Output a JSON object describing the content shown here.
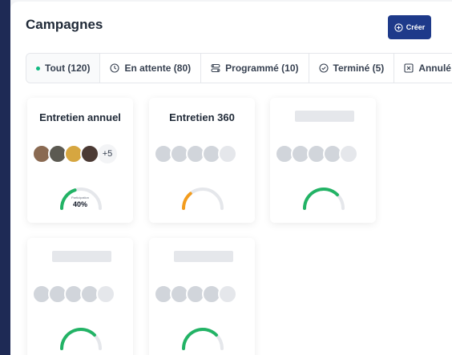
{
  "header": {
    "title": "Campagnes",
    "create_label": "Créer"
  },
  "tabs": [
    {
      "label": "Tout (120)",
      "icon": "green-dot-icon",
      "active": true
    },
    {
      "label": "En attente (80)",
      "icon": "clock-icon",
      "active": false
    },
    {
      "label": "Programmé (10)",
      "icon": "toggles-icon",
      "active": false
    },
    {
      "label": "Terminé (5)",
      "icon": "check-circle-icon",
      "active": false
    },
    {
      "label": "Annulé (",
      "icon": "x-square-icon",
      "active": false
    }
  ],
  "cards": [
    {
      "title": "Entretien annuel",
      "avatars": "photos",
      "more_label": "+5",
      "progress": 0.4,
      "gauge_caption": "Participation",
      "gauge_value": "40%",
      "gauge_color": "#22b365"
    },
    {
      "title": "Entretien 360",
      "avatars": "placeholders",
      "progress": 0.28,
      "gauge_color": "#f39c1d"
    },
    {
      "title": "",
      "avatars": "placeholders",
      "progress": 0.75,
      "gauge_color": "#22b365"
    },
    {
      "title": "",
      "avatars": "placeholders",
      "progress": 0.75,
      "gauge_color": "#22b365"
    },
    {
      "title": "",
      "avatars": "placeholders",
      "progress": 0.75,
      "gauge_color": "#22b365"
    }
  ],
  "colors": {
    "accent": "#1e3a8a",
    "sidebar": "#1e2a55",
    "success": "#22b365",
    "warning": "#f39c1d"
  }
}
